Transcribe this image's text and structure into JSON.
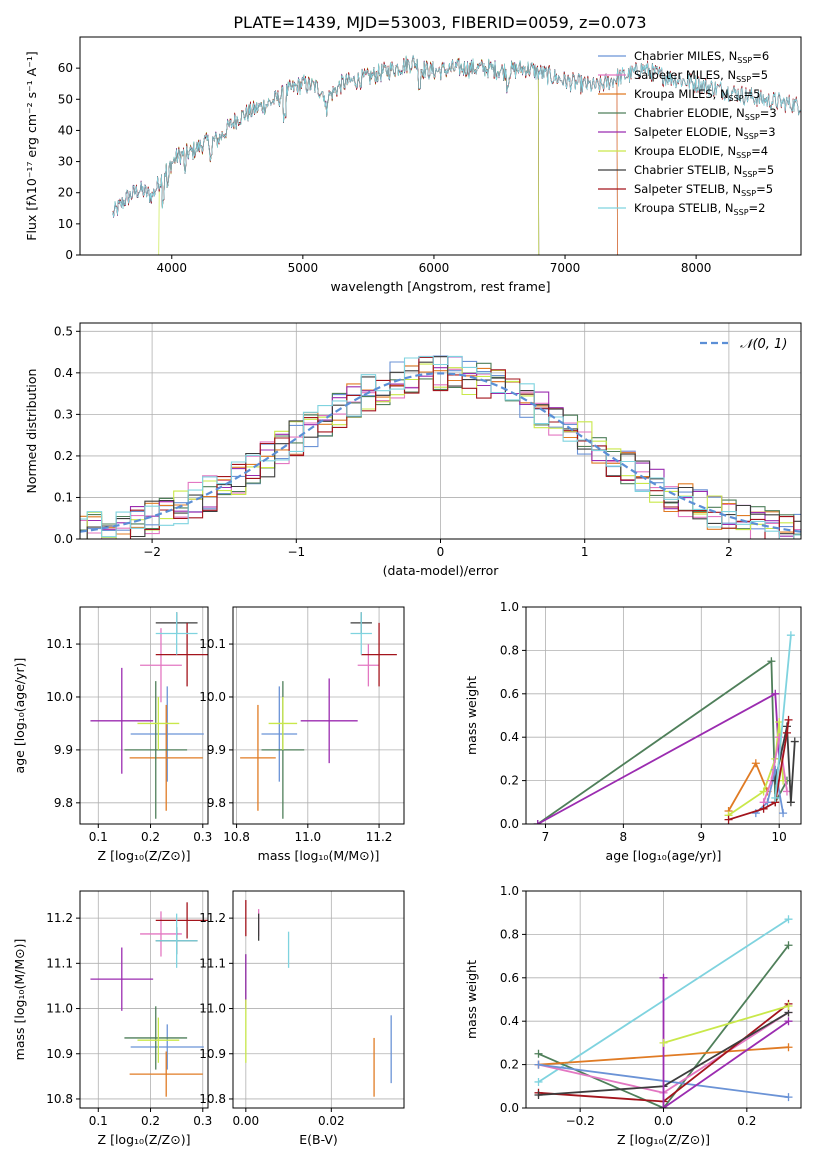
{
  "figure_title": "PLATE=1439, MJD=53003, FIBERID=0059, z=0.073",
  "colors": {
    "Chabrier MILES": "#6b93d6",
    "Salpeter MILES": "#e377c2",
    "Kroupa MILES": "#e07b24",
    "Chabrier ELODIE": "#4f7f5a",
    "Salpeter ELODIE": "#9b2cb0",
    "Kroupa ELODIE": "#c9e84a",
    "Chabrier STELIB": "#3d3d3d",
    "Salpeter STELIB": "#a3141c",
    "Kroupa STELIB": "#7fd3df",
    "normal": "#5b8fd6"
  },
  "chart_data": [
    {
      "id": "spectrum",
      "type": "line",
      "xlabel": "wavelength [Angstrom, rest frame]",
      "ylabel": "Flux [fλ10⁻¹⁷ erg cm⁻² s⁻¹ A⁻¹]",
      "xlim": [
        3300,
        8800
      ],
      "ylim": [
        0,
        70
      ],
      "xticks": [
        4000,
        5000,
        6000,
        7000,
        8000
      ],
      "yticks": [
        0,
        10,
        20,
        30,
        40,
        50,
        60
      ],
      "legend_position": "top-right",
      "legend": [
        {
          "name": "Chabrier MILES",
          "label": "Chabrier MILES, N",
          "sub": "SSP",
          "tail": "=6"
        },
        {
          "name": "Salpeter MILES",
          "label": "Salpeter MILES, N",
          "sub": "SSP",
          "tail": "=5"
        },
        {
          "name": "Kroupa MILES",
          "label": "Kroupa MILES, N",
          "sub": "SSP",
          "tail": "=5"
        },
        {
          "name": "Chabrier ELODIE",
          "label": "Chabrier ELODIE, N",
          "sub": "SSP",
          "tail": "=3"
        },
        {
          "name": "Salpeter ELODIE",
          "label": "Salpeter ELODIE, N",
          "sub": "SSP",
          "tail": "=3"
        },
        {
          "name": "Kroupa ELODIE",
          "label": "Kroupa ELODIE, N",
          "sub": "SSP",
          "tail": "=4"
        },
        {
          "name": "Chabrier STELIB",
          "label": "Chabrier STELIB, N",
          "sub": "SSP",
          "tail": "=5"
        },
        {
          "name": "Salpeter STELIB",
          "label": "Salpeter STELIB, N",
          "sub": "SSP",
          "tail": "=5"
        },
        {
          "name": "Kroupa STELIB",
          "label": "Kroupa STELIB, N",
          "sub": "SSP",
          "tail": "=2"
        }
      ],
      "continuum": [
        [
          3550,
          13
        ],
        [
          3650,
          18
        ],
        [
          3750,
          21
        ],
        [
          3850,
          19
        ],
        [
          3950,
          27
        ],
        [
          4050,
          32
        ],
        [
          4150,
          33
        ],
        [
          4250,
          36
        ],
        [
          4350,
          37
        ],
        [
          4500,
          44
        ],
        [
          4650,
          47
        ],
        [
          4800,
          50
        ],
        [
          4900,
          53
        ],
        [
          5000,
          55
        ],
        [
          5100,
          54
        ],
        [
          5200,
          51
        ],
        [
          5300,
          55
        ],
        [
          5500,
          57
        ],
        [
          5700,
          60
        ],
        [
          5850,
          62
        ],
        [
          5900,
          60
        ],
        [
          6000,
          59
        ],
        [
          6200,
          60
        ],
        [
          6400,
          60
        ],
        [
          6563,
          59
        ],
        [
          6700,
          60
        ],
        [
          6850,
          58
        ],
        [
          7000,
          56
        ],
        [
          7100,
          55
        ],
        [
          7250,
          54
        ],
        [
          7400,
          57
        ],
        [
          7500,
          58
        ],
        [
          7600,
          60
        ],
        [
          7700,
          58
        ],
        [
          7900,
          56
        ],
        [
          8100,
          54
        ],
        [
          8300,
          52
        ],
        [
          8500,
          50
        ],
        [
          8800,
          48
        ]
      ],
      "spectrum_ranges": {
        "Chabrier MILES": [
          3550,
          7400
        ],
        "Salpeter MILES": [
          3550,
          7400
        ],
        "Kroupa MILES": [
          3550,
          7400
        ],
        "Chabrier ELODIE": [
          3550,
          6800
        ],
        "Salpeter ELODIE": [
          3550,
          6800
        ],
        "Kroupa ELODIE": [
          3900,
          6800
        ],
        "Chabrier STELIB": [
          3550,
          8800
        ],
        "Salpeter STELIB": [
          3550,
          8800
        ],
        "Kroupa STELIB": [
          3550,
          8800
        ]
      }
    },
    {
      "id": "residuals",
      "type": "histogram",
      "xlabel": "(data-model)/error",
      "ylabel": "Normed distribution",
      "xlim": [
        -2.5,
        2.5
      ],
      "ylim": [
        0,
        0.52
      ],
      "xticks": [
        -2,
        -1,
        0,
        1,
        2
      ],
      "yticks": [
        0.0,
        0.1,
        0.2,
        0.3,
        0.4,
        0.5
      ],
      "grid": true,
      "legend_position": "top-right",
      "legend_label": "𝒩(0, 1)",
      "bin_width": 0.1
    },
    {
      "id": "z-age",
      "type": "errorbar",
      "xlabel": "Z [log₁₀(Z/Z⊙)]",
      "ylabel": "age  [log₁₀(age/yr)]",
      "xlim": [
        0.065,
        0.31
      ],
      "ylim": [
        9.76,
        10.17
      ],
      "xticks": [
        0.1,
        0.2,
        0.3
      ],
      "yticks": [
        9.8,
        9.9,
        10.0,
        10.1
      ],
      "grid": true,
      "points": [
        {
          "model": "Chabrier MILES",
          "x": 0.232,
          "xerr": 0.07,
          "y": 9.93,
          "yerr": 0.09
        },
        {
          "model": "Salpeter MILES",
          "x": 0.22,
          "xerr": 0.04,
          "y": 10.06,
          "yerr": 0.07
        },
        {
          "model": "Kroupa MILES",
          "x": 0.23,
          "xerr": 0.07,
          "y": 9.885,
          "yerr": 0.1
        },
        {
          "model": "Chabrier ELODIE",
          "x": 0.21,
          "xerr": 0.06,
          "y": 9.9,
          "yerr": 0.13
        },
        {
          "model": "Salpeter ELODIE",
          "x": 0.145,
          "xerr": 0.06,
          "y": 9.955,
          "yerr": 0.1
        },
        {
          "model": "Kroupa ELODIE",
          "x": 0.215,
          "xerr": 0.04,
          "y": 9.95,
          "yerr": 0.05
        },
        {
          "model": "Chabrier STELIB",
          "x": 0.25,
          "xerr": 0.04,
          "y": 10.14,
          "yerr": 0.02
        },
        {
          "model": "Salpeter STELIB",
          "x": 0.27,
          "xerr": 0.06,
          "y": 10.08,
          "yerr": 0.06
        },
        {
          "model": "Kroupa STELIB",
          "x": 0.25,
          "xerr": 0.04,
          "y": 10.12,
          "yerr": 0.04
        }
      ]
    },
    {
      "id": "mass-age",
      "type": "errorbar",
      "xlabel": "mass [log₁₀(M/M⊙)]",
      "ylabel": "",
      "xlim": [
        10.79,
        11.27
      ],
      "ylim": [
        9.76,
        10.17
      ],
      "xticks": [
        10.8,
        11.0,
        11.2
      ],
      "yticks": [
        9.8,
        9.9,
        10.0,
        10.1
      ],
      "grid": true,
      "points": [
        {
          "model": "Chabrier MILES",
          "x": 10.92,
          "xerr": 0.05,
          "y": 9.93,
          "yerr": 0.09
        },
        {
          "model": "Salpeter MILES",
          "x": 11.17,
          "xerr": 0.03,
          "y": 10.06,
          "yerr": 0.04
        },
        {
          "model": "Kroupa MILES",
          "x": 10.86,
          "xerr": 0.05,
          "y": 9.885,
          "yerr": 0.1
        },
        {
          "model": "Chabrier ELODIE",
          "x": 10.93,
          "xerr": 0.06,
          "y": 9.9,
          "yerr": 0.13
        },
        {
          "model": "Salpeter ELODIE",
          "x": 11.06,
          "xerr": 0.08,
          "y": 9.955,
          "yerr": 0.08
        },
        {
          "model": "Kroupa ELODIE",
          "x": 10.93,
          "xerr": 0.04,
          "y": 9.95,
          "yerr": 0.05
        },
        {
          "model": "Chabrier STELIB",
          "x": 11.15,
          "xerr": 0.03,
          "y": 10.14,
          "yerr": 0.02
        },
        {
          "model": "Salpeter STELIB",
          "x": 11.2,
          "xerr": 0.05,
          "y": 10.08,
          "yerr": 0.06
        },
        {
          "model": "Kroupa STELIB",
          "x": 11.15,
          "xerr": 0.03,
          "y": 10.12,
          "yerr": 0.04
        }
      ]
    },
    {
      "id": "age-weight",
      "type": "line",
      "xlabel": "age  [log₁₀(age/yr)]",
      "ylabel": "mass weight",
      "xlim": [
        6.75,
        10.28
      ],
      "ylim": [
        0,
        1.0
      ],
      "xticks": [
        7,
        8,
        9,
        10
      ],
      "yticks": [
        0.0,
        0.2,
        0.4,
        0.6,
        0.8,
        1.0
      ],
      "grid": true,
      "series": [
        {
          "model": "Chabrier ELODIE",
          "x": [
            6.9,
            9.9,
            9.95,
            10.1
          ],
          "y": [
            0.0,
            0.75,
            0.1,
            0.2
          ]
        },
        {
          "model": "Salpeter ELODIE",
          "x": [
            6.9,
            9.95,
            10.0
          ],
          "y": [
            0.0,
            0.6,
            0.3
          ]
        },
        {
          "model": "Kroupa MILES",
          "x": [
            9.35,
            9.7,
            9.85
          ],
          "y": [
            0.06,
            0.28,
            0.15
          ]
        },
        {
          "model": "Kroupa ELODIE",
          "x": [
            9.35,
            9.8,
            9.95,
            10.0,
            10.05
          ],
          "y": [
            0.04,
            0.15,
            0.3,
            0.47,
            0.2
          ]
        },
        {
          "model": "Chabrier MILES",
          "x": [
            9.7,
            9.85,
            9.95,
            10.05
          ],
          "y": [
            0.05,
            0.1,
            0.25,
            0.05
          ]
        },
        {
          "model": "Salpeter MILES",
          "x": [
            9.8,
            9.9,
            10.0,
            10.1
          ],
          "y": [
            0.1,
            0.2,
            0.4,
            0.15
          ]
        },
        {
          "model": "Chabrier STELIB",
          "x": [
            9.95,
            10.1,
            10.15,
            10.2
          ],
          "y": [
            0.2,
            0.45,
            0.1,
            0.38
          ]
        },
        {
          "model": "Salpeter STELIB",
          "x": [
            9.35,
            9.8,
            9.95,
            10.1,
            10.12
          ],
          "y": [
            0.02,
            0.07,
            0.1,
            0.42,
            0.48
          ]
        },
        {
          "model": "Kroupa STELIB",
          "x": [
            9.95,
            10.15
          ],
          "y": [
            0.12,
            0.87
          ]
        }
      ]
    },
    {
      "id": "z-mass",
      "type": "errorbar",
      "xlabel": "Z [log₁₀(Z/Z⊙)]",
      "ylabel": "mass [log₁₀(M/M⊙)]",
      "xlim": [
        0.065,
        0.31
      ],
      "ylim": [
        10.78,
        11.26
      ],
      "xticks": [
        0.1,
        0.2,
        0.3
      ],
      "yticks": [
        10.8,
        10.9,
        11.0,
        11.1,
        11.2
      ],
      "grid": true,
      "points": [
        {
          "model": "Chabrier MILES",
          "x": 0.232,
          "xerr": 0.07,
          "y": 10.915,
          "yerr": 0.05
        },
        {
          "model": "Salpeter MILES",
          "x": 0.22,
          "xerr": 0.04,
          "y": 11.165,
          "yerr": 0.05
        },
        {
          "model": "Kroupa MILES",
          "x": 0.23,
          "xerr": 0.07,
          "y": 10.855,
          "yerr": 0.05
        },
        {
          "model": "Chabrier ELODIE",
          "x": 0.21,
          "xerr": 0.06,
          "y": 10.935,
          "yerr": 0.07
        },
        {
          "model": "Salpeter ELODIE",
          "x": 0.145,
          "xerr": 0.06,
          "y": 11.065,
          "yerr": 0.07
        },
        {
          "model": "Kroupa ELODIE",
          "x": 0.215,
          "xerr": 0.04,
          "y": 10.93,
          "yerr": 0.05
        },
        {
          "model": "Chabrier STELIB",
          "x": 0.25,
          "xerr": 0.04,
          "y": 11.15,
          "yerr": 0.03
        },
        {
          "model": "Salpeter STELIB",
          "x": 0.27,
          "xerr": 0.06,
          "y": 11.195,
          "yerr": 0.04
        },
        {
          "model": "Kroupa STELIB",
          "x": 0.25,
          "xerr": 0.04,
          "y": 11.15,
          "yerr": 0.06
        }
      ]
    },
    {
      "id": "ebv-mass",
      "type": "errorbar",
      "xlabel": "E(B-V)",
      "ylabel": "",
      "xlim": [
        -0.003,
        0.037
      ],
      "ylim": [
        10.78,
        11.26
      ],
      "xticks": [
        0.0,
        0.02
      ],
      "yticks": [
        10.8,
        10.9,
        11.0,
        11.1,
        11.2
      ],
      "grid": true,
      "points": [
        {
          "model": "Chabrier MILES",
          "x": 0.034,
          "xerr": 0,
          "y": 10.91,
          "yerr": 0.075
        },
        {
          "model": "Salpeter MILES",
          "x": 0.003,
          "xerr": 0,
          "y": 11.19,
          "yerr": 0.03
        },
        {
          "model": "Kroupa MILES",
          "x": 0.03,
          "xerr": 0,
          "y": 10.87,
          "yerr": 0.065
        },
        {
          "model": "Chabrier ELODIE",
          "x": 0.0,
          "xerr": 0,
          "y": 11.07,
          "yerr": 0.05
        },
        {
          "model": "Salpeter ELODIE",
          "x": 0.0,
          "xerr": 0,
          "y": 11.06,
          "yerr": 0.06
        },
        {
          "model": "Kroupa ELODIE",
          "x": 0.0,
          "xerr": 0,
          "y": 10.95,
          "yerr": 0.07
        },
        {
          "model": "Chabrier STELIB",
          "x": 0.003,
          "xerr": 0,
          "y": 11.18,
          "yerr": 0.03
        },
        {
          "model": "Salpeter STELIB",
          "x": 0.0,
          "xerr": 0,
          "y": 11.2,
          "yerr": 0.04
        },
        {
          "model": "Kroupa STELIB",
          "x": 0.01,
          "xerr": 0,
          "y": 11.13,
          "yerr": 0.04
        }
      ]
    },
    {
      "id": "z-weight",
      "type": "line",
      "xlabel": "Z [log₁₀(Z/Z⊙)]",
      "ylabel": "mass weight",
      "xlim": [
        -0.33,
        0.33
      ],
      "ylim": [
        0,
        1.0
      ],
      "xticks": [
        -0.2,
        0.0,
        0.2
      ],
      "yticks": [
        0.0,
        0.2,
        0.4,
        0.6,
        0.8,
        1.0
      ],
      "grid": true,
      "series": [
        {
          "model": "Kroupa STELIB",
          "x": [
            -0.3,
            0.3
          ],
          "y": [
            0.12,
            0.87
          ]
        },
        {
          "model": "Chabrier ELODIE",
          "x": [
            -0.3,
            0.0,
            0.3
          ],
          "y": [
            0.25,
            0.0,
            0.75
          ]
        },
        {
          "model": "Salpeter MILES",
          "x": [
            -0.3,
            0.0,
            0.3
          ],
          "y": [
            0.2,
            0.07,
            0.44
          ]
        },
        {
          "model": "Kroupa MILES",
          "x": [
            -0.3,
            0.3
          ],
          "y": [
            0.2,
            0.28
          ]
        },
        {
          "model": "Chabrier MILES",
          "x": [
            -0.3,
            0.3
          ],
          "y": [
            0.2,
            0.05
          ]
        },
        {
          "model": "Salpeter STELIB",
          "x": [
            -0.3,
            0.0,
            0.3
          ],
          "y": [
            0.07,
            0.03,
            0.48
          ]
        },
        {
          "model": "Chabrier STELIB",
          "x": [
            -0.3,
            0.0,
            0.3
          ],
          "y": [
            0.06,
            0.1,
            0.44
          ]
        },
        {
          "model": "Salpeter ELODIE",
          "x": [
            0.0,
            0.0,
            0.3
          ],
          "y": [
            0.6,
            0.0,
            0.4
          ]
        },
        {
          "model": "Kroupa ELODIE",
          "x": [
            0.0,
            0.3
          ],
          "y": [
            0.3,
            0.47
          ]
        }
      ]
    }
  ]
}
